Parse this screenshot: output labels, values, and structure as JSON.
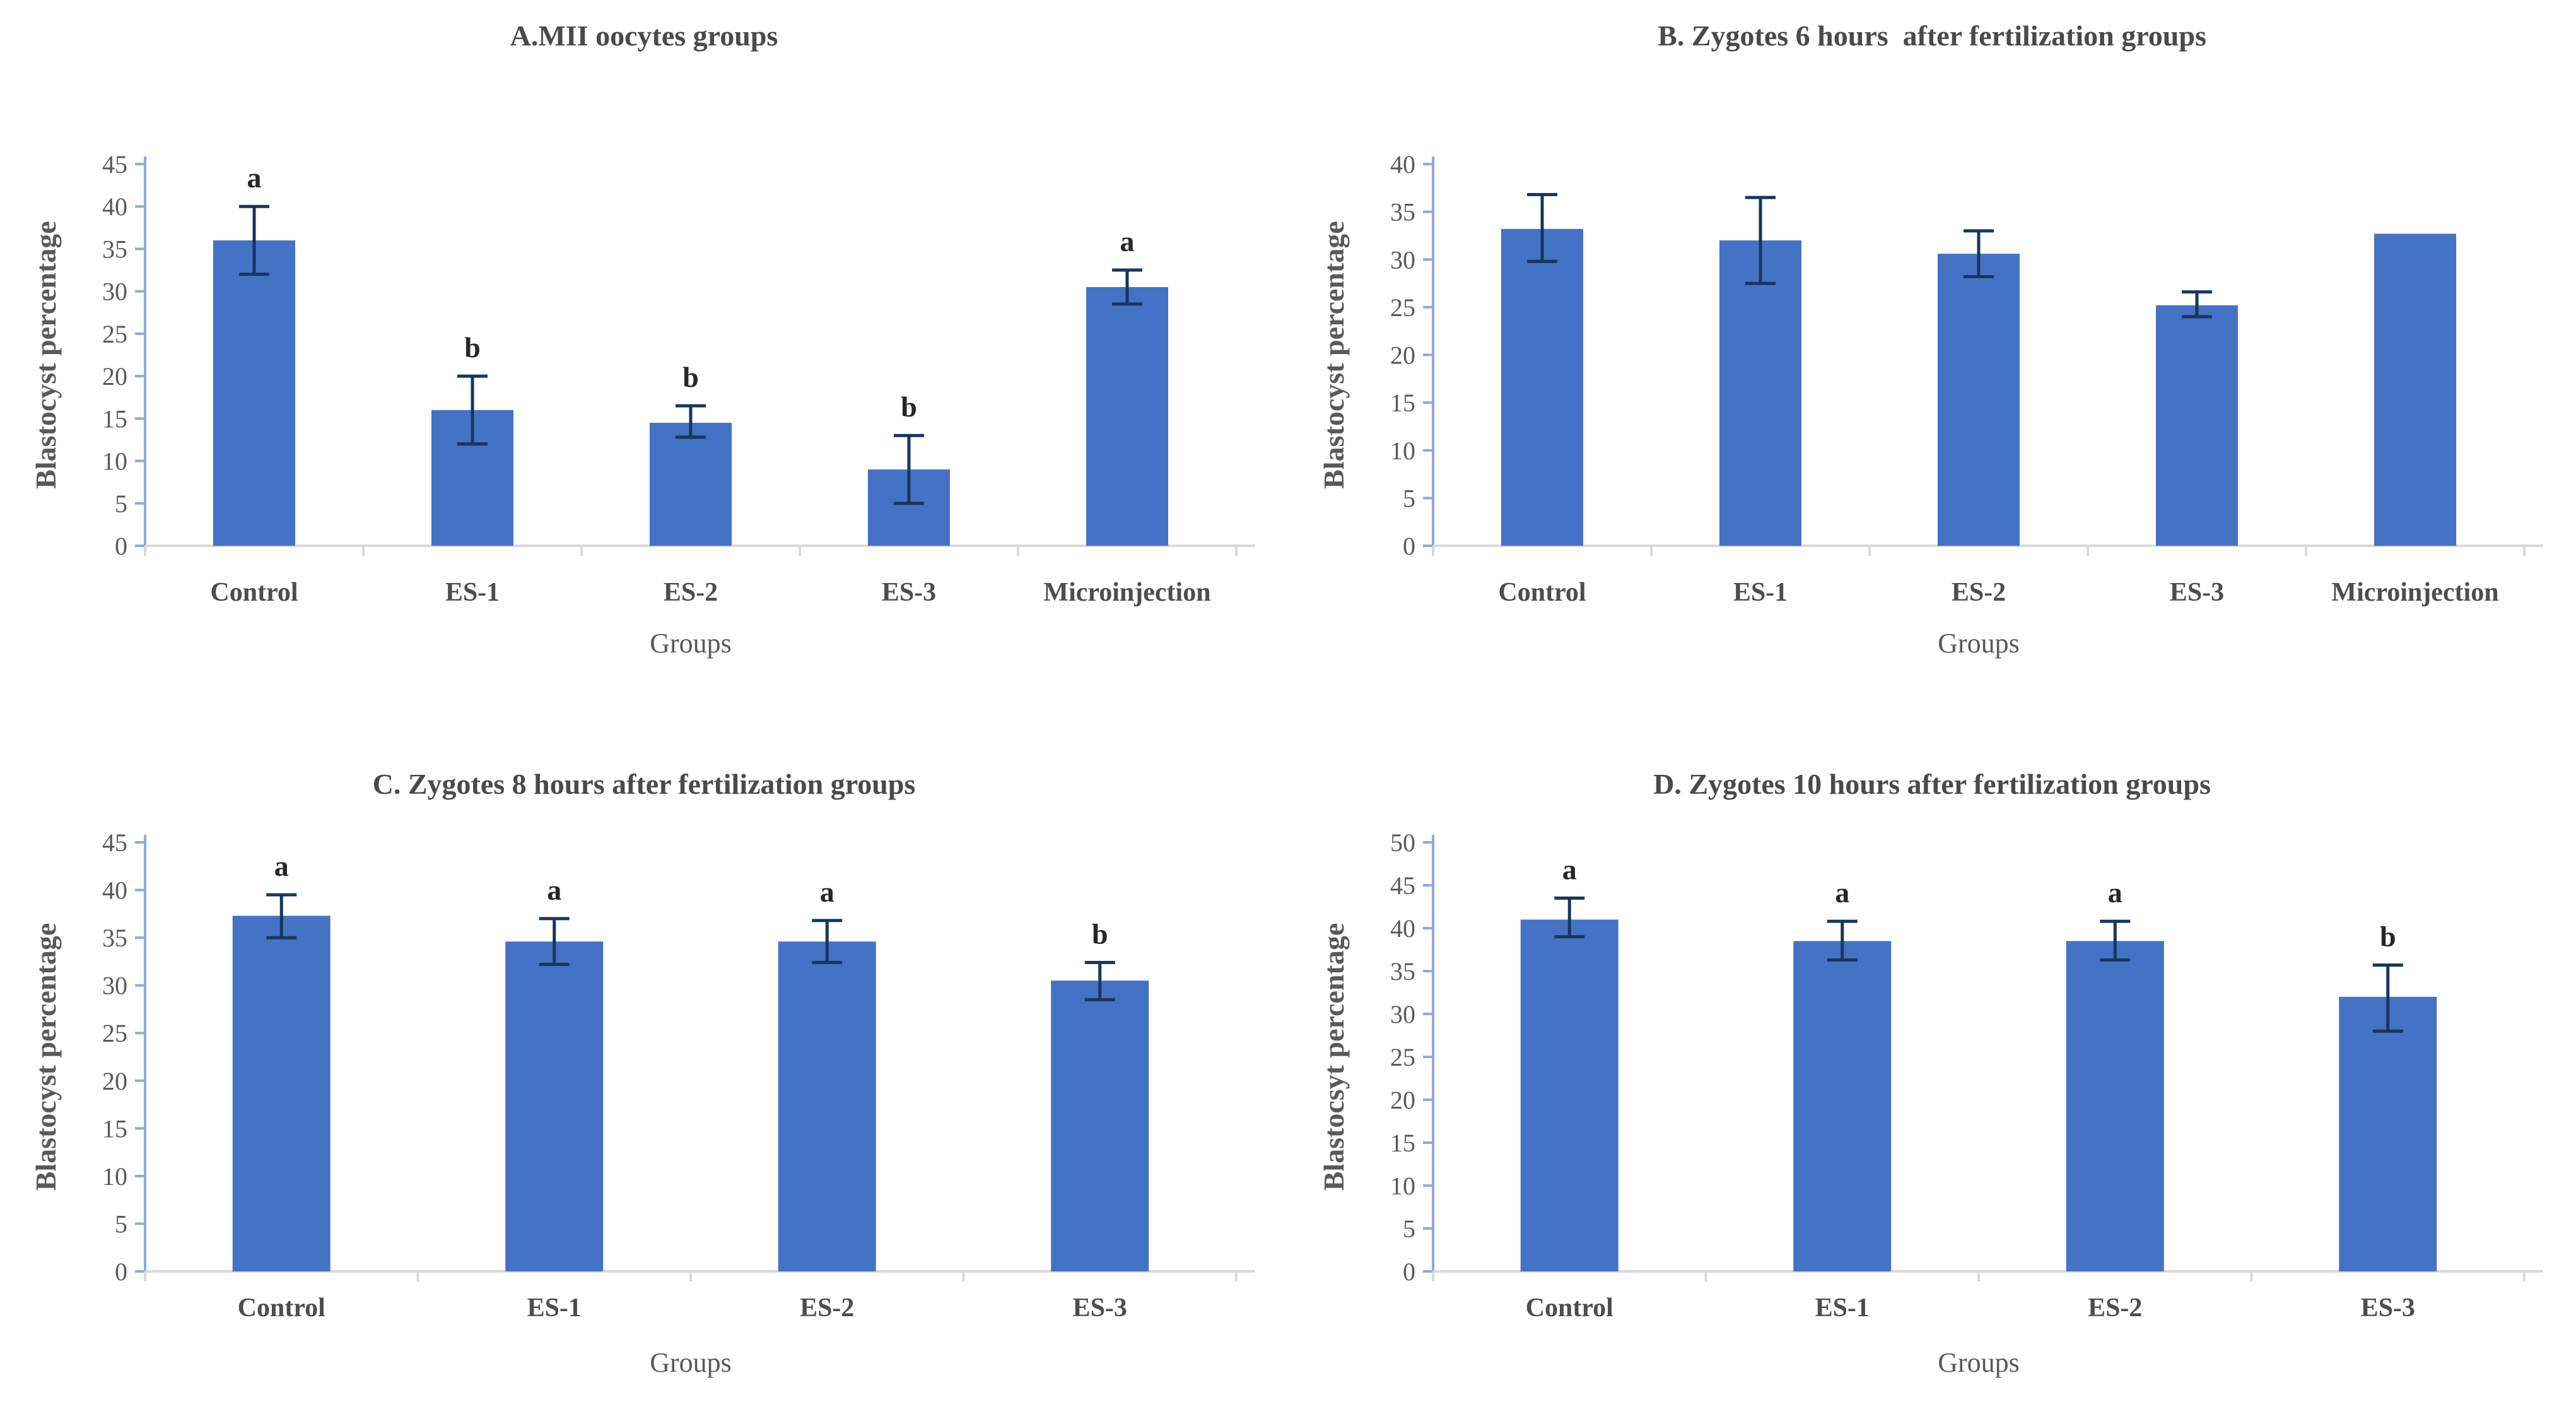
{
  "figure_caption": "Blastocyst percentage bar charts for four experimental timings",
  "colors": {
    "bar": "#4472C4",
    "y_axis": "#8FAADC",
    "baseline": "#D9D9D9",
    "error_bar": "#17365D",
    "tick_text": "#595959",
    "title_text": "#4a4a4a",
    "sig_letter": "#262626"
  },
  "chart_data": [
    {
      "panel": "A",
      "type": "bar",
      "title": "A.MII oocytes groups",
      "xlabel": "Groups",
      "ylabel": "Blastocyst percentage",
      "ylim": [
        0,
        45
      ],
      "ytick_step": 5,
      "grid": false,
      "legend": false,
      "categories": [
        "Control",
        "ES-1",
        "ES-2",
        "ES-3",
        "Microinjection"
      ],
      "values": [
        36,
        16,
        14.5,
        9,
        30.5
      ],
      "error_low": [
        32,
        12,
        12.8,
        5,
        28.5
      ],
      "error_high": [
        40,
        20,
        16.5,
        13,
        32.5
      ],
      "sig_letters": [
        "a",
        "b",
        "b",
        "b",
        "a"
      ]
    },
    {
      "panel": "B",
      "type": "bar",
      "title": "B. Zygotes 6 hours  after fertilization groups",
      "xlabel": "Groups",
      "ylabel": "Blastocyst percentage",
      "ylim": [
        0,
        40
      ],
      "ytick_step": 5,
      "grid": false,
      "legend": false,
      "categories": [
        "Control",
        "ES-1",
        "ES-2",
        "ES-3",
        "Microinjection"
      ],
      "values": [
        33.2,
        32,
        30.6,
        25.2,
        32.7
      ],
      "error_low": [
        29.8,
        27.5,
        28.2,
        24,
        null
      ],
      "error_high": [
        36.8,
        36.5,
        33,
        26.6,
        null
      ],
      "sig_letters": [
        "",
        "",
        "",
        "",
        ""
      ]
    },
    {
      "panel": "C",
      "type": "bar",
      "title": "C. Zygotes 8 hours after fertilization groups",
      "xlabel": "Groups",
      "ylabel": "Blastocyst percentage",
      "ylim": [
        0,
        45
      ],
      "ytick_step": 5,
      "grid": false,
      "legend": false,
      "categories": [
        "Control",
        "ES-1",
        "ES-2",
        "ES-3"
      ],
      "values": [
        37.3,
        34.6,
        34.6,
        30.5
      ],
      "error_low": [
        35,
        32.2,
        32.4,
        28.5
      ],
      "error_high": [
        39.5,
        37,
        36.8,
        32.4
      ],
      "sig_letters": [
        "a",
        "a",
        "a",
        "b"
      ]
    },
    {
      "panel": "D",
      "type": "bar",
      "title": "D. Zygotes 10 hours after fertilization groups",
      "xlabel": "Groups",
      "ylabel": "Blastocsyt percentage",
      "ylim": [
        0,
        50
      ],
      "ytick_step": 5,
      "grid": false,
      "legend": false,
      "categories": [
        "Control",
        "ES-1",
        "ES-2",
        "ES-3"
      ],
      "values": [
        41,
        38.5,
        38.5,
        32
      ],
      "error_low": [
        39,
        36.3,
        36.3,
        28
      ],
      "error_high": [
        43.5,
        40.8,
        40.8,
        35.7
      ],
      "sig_letters": [
        "a",
        "a",
        "a",
        "b"
      ]
    }
  ]
}
